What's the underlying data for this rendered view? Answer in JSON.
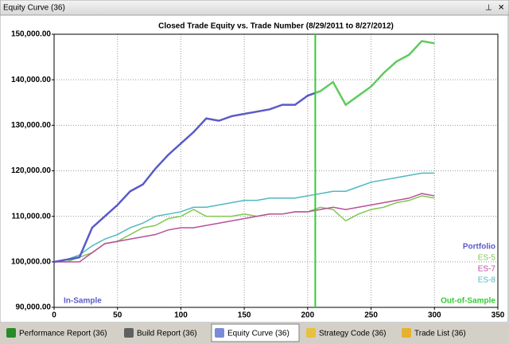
{
  "window": {
    "title": "Equity Curve (36)"
  },
  "tabs": {
    "labels": [
      "Performance Report (36)",
      "Build Report (36)",
      "Equity Curve (36)",
      "Strategy Code (36)",
      "Trade List (36)"
    ],
    "active": 2
  },
  "chart_data": {
    "type": "line",
    "title": "Closed Trade Equity vs. Trade Number (8/29/2011 to 8/27/2012)",
    "x": [
      0,
      10,
      20,
      30,
      40,
      50,
      60,
      70,
      80,
      90,
      100,
      110,
      120,
      130,
      140,
      150,
      160,
      170,
      180,
      190,
      200,
      210,
      220,
      230,
      240,
      250,
      260,
      270,
      280,
      290,
      300
    ],
    "series": [
      {
        "name": "Portfolio",
        "color": "#5a5ac8",
        "out_of_sample_color": "#5ccc5c",
        "values": [
          100000,
          100500,
          101000,
          107500,
          110000,
          112500,
          115500,
          117000,
          120500,
          123500,
          126000,
          128500,
          131500,
          131000,
          132000,
          132500,
          133000,
          133500,
          134500,
          134500,
          136500,
          137500,
          139500,
          134500,
          136500,
          138500,
          141500,
          144000,
          145500,
          148500,
          148000
        ]
      },
      {
        "name": "ES-5",
        "color": "#80c850",
        "values": [
          100000,
          100000,
          101000,
          102000,
          104000,
          104500,
          106000,
          107500,
          108000,
          109500,
          110000,
          111500,
          110000,
          110000,
          110000,
          110500,
          110000,
          110500,
          110500,
          111000,
          111000,
          112000,
          111500,
          109000,
          110500,
          111500,
          112000,
          113000,
          113500,
          114500,
          114000
        ]
      },
      {
        "name": "ES-7",
        "color": "#b8509a",
        "values": [
          100000,
          100000,
          100000,
          102000,
          104000,
          104500,
          105000,
          105500,
          106000,
          107000,
          107500,
          107500,
          108000,
          108500,
          109000,
          109500,
          110000,
          110500,
          110500,
          111000,
          111000,
          111500,
          112000,
          111500,
          112000,
          112500,
          113000,
          113500,
          114000,
          115000,
          114500
        ]
      },
      {
        "name": "ES-8",
        "color": "#50b8c0",
        "values": [
          100000,
          100500,
          101500,
          103500,
          105000,
          106000,
          107500,
          108500,
          110000,
          110500,
          111000,
          112000,
          112000,
          112500,
          113000,
          113500,
          113500,
          114000,
          114000,
          114000,
          114500,
          115000,
          115500,
          115500,
          116500,
          117500,
          118000,
          118500,
          119000,
          119500,
          119500
        ]
      }
    ],
    "divider_x": 206,
    "divider_color": "#33cc33",
    "annotations": {
      "in_sample": "In-Sample",
      "out_of_sample": "Out-of-Sample"
    },
    "xlim": [
      0,
      350
    ],
    "xticks": [
      0,
      50,
      100,
      150,
      200,
      250,
      300,
      350
    ],
    "ylim": [
      90000,
      150000
    ],
    "yticks": [
      {
        "value": 90000,
        "label": "90,000.00"
      },
      {
        "value": 100000,
        "label": "100,000.00"
      },
      {
        "value": 110000,
        "label": "110,000.00"
      },
      {
        "value": 120000,
        "label": "120,000.00"
      },
      {
        "value": 130000,
        "label": "130,000.00"
      },
      {
        "value": 140000,
        "label": "140,000.00"
      },
      {
        "value": 150000,
        "label": "150,000.00"
      }
    ],
    "grid": true,
    "legend": "lower-right"
  }
}
